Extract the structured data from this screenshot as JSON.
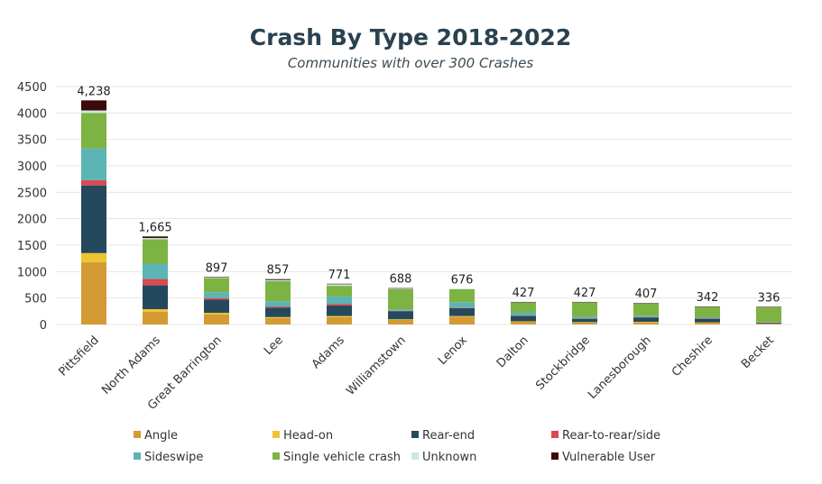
{
  "chart_data": {
    "type": "bar",
    "stacked": true,
    "title": "Crash By Type 2018-2022",
    "subtitle": "Communities with over 300 Crashes",
    "xlabel": "",
    "ylabel": "",
    "ylim": [
      0,
      4500
    ],
    "yticks": [
      0,
      500,
      1000,
      1500,
      2000,
      2500,
      3000,
      3500,
      4000,
      4500
    ],
    "grid": true,
    "legend_position": "bottom",
    "categories": [
      "Pittsfield",
      "North Adams",
      "Great Barrington",
      "Lee",
      "Adams",
      "Williamstown",
      "Lenox",
      "Dalton",
      "Stockbridge",
      "Lanesborough",
      "Cheshire",
      "Becket"
    ],
    "totals": [
      4238,
      1665,
      897,
      857,
      771,
      688,
      676,
      427,
      427,
      407,
      342,
      336
    ],
    "total_labels": [
      "4,238",
      "1,665",
      "897",
      "857",
      "771",
      "688",
      "676",
      "427",
      "427",
      "407",
      "342",
      "336"
    ],
    "series": [
      {
        "name": "Angle",
        "color": "#d49a33",
        "values": [
          1180,
          240,
          190,
          120,
          140,
          88,
          150,
          50,
          40,
          40,
          35,
          10
        ]
      },
      {
        "name": "Head-on",
        "color": "#eec531",
        "values": [
          170,
          50,
          30,
          20,
          20,
          10,
          10,
          10,
          5,
          10,
          5,
          3
        ]
      },
      {
        "name": "Rear-end",
        "color": "#25495c",
        "values": [
          1280,
          450,
          250,
          180,
          200,
          150,
          150,
          100,
          60,
          80,
          70,
          20
        ]
      },
      {
        "name": "Rear-to-rear/side",
        "color": "#d94a52",
        "values": [
          100,
          120,
          30,
          20,
          30,
          10,
          10,
          10,
          5,
          7,
          5,
          3
        ]
      },
      {
        "name": "Sideswipe",
        "color": "#5bb5b5",
        "values": [
          600,
          290,
          110,
          100,
          140,
          30,
          100,
          60,
          37,
          30,
          22,
          10
        ]
      },
      {
        "name": "Single vehicle crash",
        "color": "#7cb342",
        "values": [
          670,
          460,
          267,
          380,
          201,
          380,
          250,
          187,
          270,
          230,
          195,
          280
        ]
      },
      {
        "name": "Unknown",
        "color": "#cce8df",
        "values": [
          48,
          25,
          10,
          20,
          30,
          10,
          6,
          5,
          5,
          5,
          5,
          5
        ]
      },
      {
        "name": "Vulnerable User",
        "color": "#3b0b0b",
        "values": [
          190,
          30,
          10,
          17,
          10,
          10,
          0,
          5,
          5,
          5,
          5,
          5
        ]
      }
    ]
  }
}
